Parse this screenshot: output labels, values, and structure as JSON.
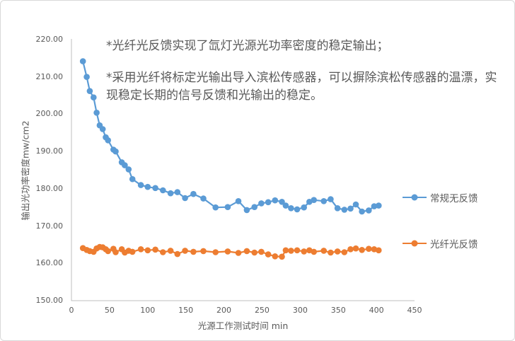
{
  "frame": {
    "background": "#FFFFFF",
    "border_color": "#D9D9D9"
  },
  "annotation": {
    "line1": "*光纤光反馈实现了氙灯光源光功率密度的稳定输出；",
    "line2": "*采用光纤将标定光输出导入滨松传感器，可以摒除滨松传感器的温漂，实现稳定长期的信号反馈和光输出的稳定。",
    "text_color": "#595959"
  },
  "chart_data": {
    "type": "line",
    "title": "",
    "xlabel": "光源工作测试时间 min",
    "ylabel": "输出光功率密度mw/cm2",
    "xlim": [
      0,
      450
    ],
    "ylim": [
      150,
      220
    ],
    "xticks": [
      0,
      50,
      100,
      150,
      200,
      250,
      300,
      350,
      400,
      450
    ],
    "ytick_labels": [
      "220.00",
      "210.00",
      "200.00",
      "190.00",
      "180.00",
      "170.00",
      "160.00",
      "150.00"
    ],
    "grid": false,
    "legend_position": "right",
    "axis_color": "#BFBFBF",
    "text_color": "#595959",
    "series": [
      {
        "name": "常规无反馈",
        "color": "#5B9BD5",
        "marker": "circle",
        "points": [
          [
            15,
            214.2
          ],
          [
            20,
            210.0
          ],
          [
            24,
            206.2
          ],
          [
            29,
            204.5
          ],
          [
            33,
            200.4
          ],
          [
            37,
            197.0
          ],
          [
            41,
            196.0
          ],
          [
            45,
            193.8
          ],
          [
            48,
            193.0
          ],
          [
            55,
            190.5
          ],
          [
            58,
            190.0
          ],
          [
            66,
            187.1
          ],
          [
            70,
            186.3
          ],
          [
            75,
            185.2
          ],
          [
            80,
            182.6
          ],
          [
            91,
            181.0
          ],
          [
            100,
            180.5
          ],
          [
            110,
            180.2
          ],
          [
            120,
            179.6
          ],
          [
            130,
            178.8
          ],
          [
            139,
            179.1
          ],
          [
            149,
            177.5
          ],
          [
            160,
            178.6
          ],
          [
            173,
            177.4
          ],
          [
            189,
            175.0
          ],
          [
            205,
            175.1
          ],
          [
            219,
            176.7
          ],
          [
            230,
            174.3
          ],
          [
            240,
            175.1
          ],
          [
            249,
            176.1
          ],
          [
            258,
            176.4
          ],
          [
            267,
            176.9
          ],
          [
            276,
            176.5
          ],
          [
            281,
            175.5
          ],
          [
            288,
            174.8
          ],
          [
            296,
            174.5
          ],
          [
            305,
            175.0
          ],
          [
            312,
            176.5
          ],
          [
            318,
            177.0
          ],
          [
            331,
            176.7
          ],
          [
            340,
            177.2
          ],
          [
            349,
            174.8
          ],
          [
            358,
            174.4
          ],
          [
            366,
            174.7
          ],
          [
            373,
            175.8
          ],
          [
            381,
            173.9
          ],
          [
            390,
            174.2
          ],
          [
            397,
            175.3
          ],
          [
            403,
            175.5
          ]
        ]
      },
      {
        "name": "光纤光反馈",
        "color": "#ED7D31",
        "marker": "circle",
        "points": [
          [
            15,
            164.1
          ],
          [
            20,
            163.6
          ],
          [
            24,
            163.3
          ],
          [
            29,
            163.1
          ],
          [
            33,
            164.0
          ],
          [
            37,
            164.4
          ],
          [
            41,
            164.3
          ],
          [
            45,
            163.8
          ],
          [
            48,
            163.3
          ],
          [
            55,
            163.9
          ],
          [
            58,
            163.0
          ],
          [
            66,
            163.8
          ],
          [
            70,
            162.9
          ],
          [
            75,
            163.4
          ],
          [
            80,
            163.1
          ],
          [
            91,
            163.8
          ],
          [
            100,
            163.5
          ],
          [
            110,
            163.7
          ],
          [
            120,
            163.0
          ],
          [
            130,
            163.4
          ],
          [
            139,
            162.5
          ],
          [
            149,
            163.4
          ],
          [
            160,
            163.1
          ],
          [
            173,
            163.3
          ],
          [
            189,
            163.0
          ],
          [
            205,
            163.2
          ],
          [
            219,
            162.8
          ],
          [
            230,
            163.3
          ],
          [
            240,
            162.9
          ],
          [
            249,
            163.1
          ],
          [
            258,
            162.4
          ],
          [
            267,
            161.9
          ],
          [
            276,
            161.8
          ],
          [
            281,
            163.5
          ],
          [
            288,
            163.4
          ],
          [
            296,
            163.5
          ],
          [
            305,
            163.2
          ],
          [
            312,
            163.5
          ],
          [
            318,
            163.1
          ],
          [
            331,
            163.4
          ],
          [
            340,
            162.9
          ],
          [
            349,
            163.2
          ],
          [
            358,
            163.0
          ],
          [
            366,
            163.8
          ],
          [
            373,
            164.0
          ],
          [
            381,
            163.6
          ],
          [
            390,
            163.9
          ],
          [
            397,
            163.8
          ],
          [
            403,
            163.5
          ]
        ]
      }
    ]
  }
}
